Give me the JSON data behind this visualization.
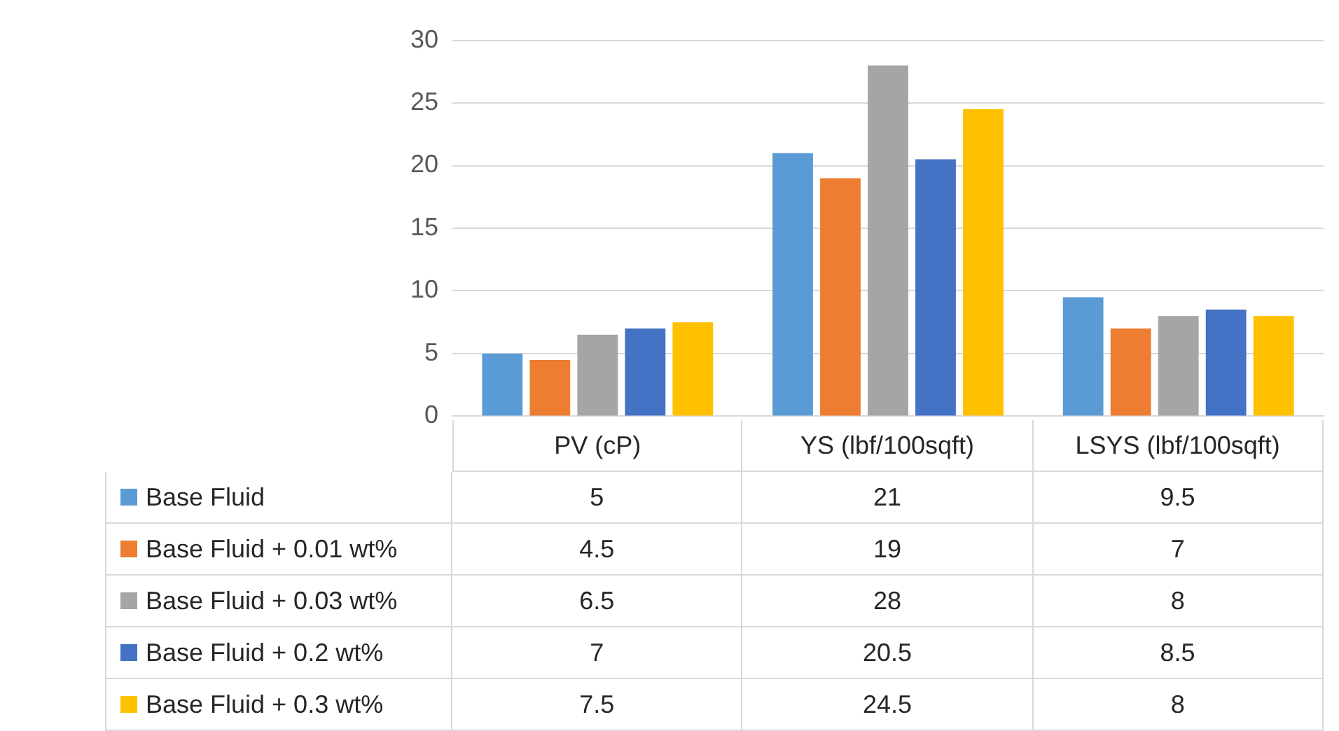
{
  "chart_data": {
    "type": "bar",
    "categories": [
      "PV (cP)",
      "YS (lbf/100sqft)",
      "LSYS (lbf/100sqft)"
    ],
    "series": [
      {
        "name": "Base Fluid",
        "color": "#5b9bd5",
        "values": [
          5,
          21,
          9.5
        ]
      },
      {
        "name": "Base Fluid + 0.01 wt%",
        "color": "#ed7d31",
        "values": [
          4.5,
          19,
          7
        ]
      },
      {
        "name": "Base Fluid + 0.03 wt%",
        "color": "#a5a5a5",
        "values": [
          6.5,
          28,
          8
        ]
      },
      {
        "name": "Base Fluid + 0.2 wt%",
        "color": "#4472c4",
        "values": [
          7,
          20.5,
          8.5
        ]
      },
      {
        "name": "Base Fluid + 0.3 wt%",
        "color": "#ffc000",
        "values": [
          7.5,
          24.5,
          8
        ]
      }
    ],
    "ylim": [
      0,
      30
    ],
    "yticks": [
      0,
      5,
      10,
      15,
      20,
      25,
      30
    ],
    "grid": "y",
    "legend": "bottom",
    "data_labels": true
  }
}
